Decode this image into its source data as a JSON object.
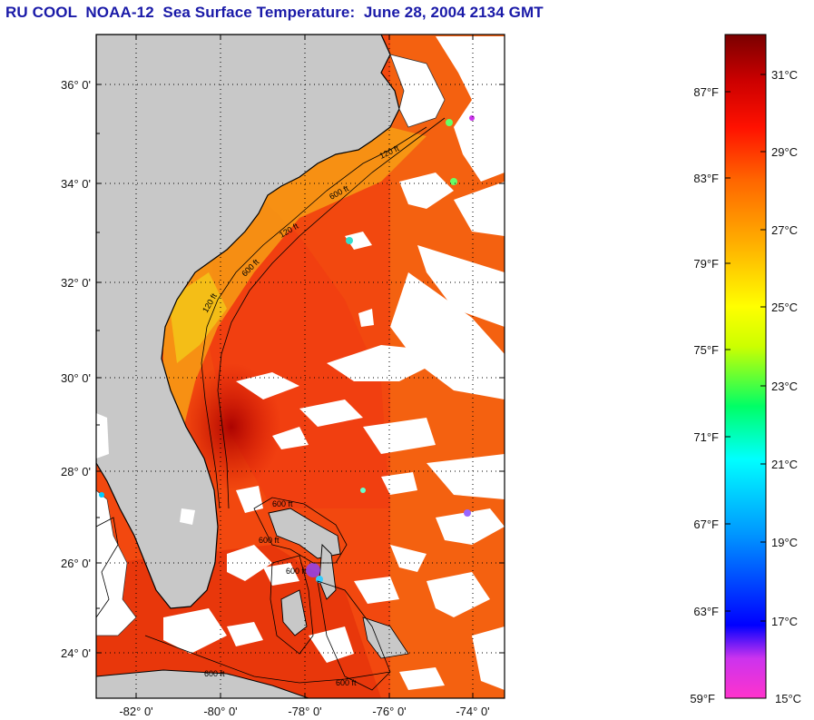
{
  "title": "RU COOL  NOAA-12  Sea Surface Temperature:  June 28, 2004 2134 GMT",
  "map": {
    "lat_labels": [
      "36° 0'",
      "34° 0'",
      "32° 0'",
      "30° 0'",
      "28° 0'",
      "26° 0'",
      "24° 0'"
    ],
    "lon_labels": [
      "-82° 0'",
      "-80° 0'",
      "-78° 0'",
      "-76° 0'",
      "-74° 0'"
    ],
    "contour_labels": [
      "120 ft",
      "600 ft",
      "120 ft",
      "600 ft",
      "120 ft",
      "600 ft",
      "600 ft",
      "600 ft",
      "600 ft",
      "600 ft"
    ],
    "colors": {
      "land": "#c8c8c8",
      "cloud": "#ffffff",
      "water": "#f04010",
      "frame": "#000000"
    }
  },
  "colorbar": {
    "fahrenheit": [
      "87°F",
      "83°F",
      "79°F",
      "75°F",
      "71°F",
      "67°F",
      "63°F",
      "59°F"
    ],
    "celsius": [
      "31°C",
      "29°C",
      "27°C",
      "25°C",
      "23°C",
      "21°C",
      "19°C",
      "17°C",
      "15°C"
    ],
    "stops": [
      "#ff33cc",
      "#9933ff",
      "#0000ff",
      "#0099ff",
      "#00ffff",
      "#00ff66",
      "#ccff00",
      "#ffff00",
      "#ffb300",
      "#ff6600",
      "#ff1100",
      "#cc0000",
      "#7a0000"
    ]
  }
}
